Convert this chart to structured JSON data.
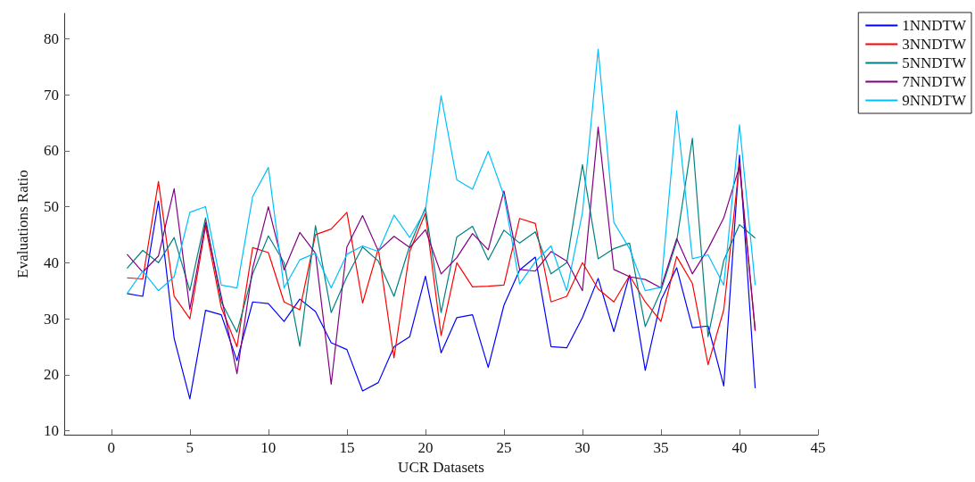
{
  "chart_data": {
    "type": "line",
    "xlabel": "UCR Datasets",
    "ylabel": "Evaluations Ratio",
    "x": [
      1,
      2,
      3,
      4,
      5,
      6,
      7,
      8,
      9,
      10,
      11,
      12,
      13,
      14,
      15,
      16,
      17,
      18,
      19,
      20,
      21,
      22,
      23,
      24,
      25,
      26,
      27,
      28,
      29,
      30,
      31,
      32,
      33,
      34,
      35,
      36,
      37,
      38,
      39,
      40,
      41
    ],
    "series": [
      {
        "name": "1NNDTW",
        "color": "#0000ff",
        "values": [
          34.5,
          34,
          51,
          26.5,
          15.7,
          31.5,
          30.7,
          22.5,
          33,
          32.7,
          29.5,
          33.5,
          31.3,
          25.7,
          24.5,
          17.1,
          18.6,
          25,
          26.8,
          37.6,
          23.9,
          30.2,
          30.7,
          21.3,
          32.4,
          38.7,
          41,
          25,
          24.8,
          30.2,
          37.2,
          27.7,
          37.8,
          20.8,
          33.3,
          39.1,
          28.4,
          28.7,
          18,
          59.2,
          17.6
        ]
      },
      {
        "name": "3NNDTW",
        "color": "#ff0000",
        "values": [
          37.3,
          37.1,
          54.5,
          34,
          30,
          46.5,
          32,
          25,
          42.7,
          41.8,
          33,
          31.6,
          45,
          46,
          49,
          32.8,
          42.5,
          23,
          42,
          48.8,
          27,
          40,
          35.7,
          35.8,
          36,
          47.9,
          47,
          33,
          34,
          40,
          35.3,
          33,
          37.7,
          33,
          29.5,
          41.1,
          36.3,
          21.8,
          31.6,
          57.8,
          27.8
        ]
      },
      {
        "name": "5NNDTW",
        "color": "#008080",
        "values": [
          39,
          42.2,
          40,
          44.5,
          35,
          48,
          33,
          27.6,
          38,
          44.8,
          40,
          25.1,
          46.6,
          31.1,
          37.5,
          42.8,
          40.3,
          34,
          43,
          49.8,
          31.1,
          44.6,
          46.5,
          40.5,
          45.8,
          43.5,
          45.5,
          38,
          40,
          57.5,
          40.7,
          42.5,
          43.5,
          28.6,
          35,
          43.8,
          62.2,
          26.8,
          40.4,
          46.8,
          44.4
        ]
      },
      {
        "name": "7NNDTW",
        "color": "#800080",
        "values": [
          41.5,
          38.3,
          41.2,
          53.2,
          31.7,
          47.2,
          34,
          20.2,
          39,
          50,
          38.7,
          45.4,
          41.7,
          18.3,
          42.8,
          48.4,
          42.1,
          44.7,
          42.7,
          45.9,
          38,
          40.9,
          45.2,
          42.3,
          52.8,
          38.8,
          38.5,
          42,
          40.3,
          35,
          64.2,
          38.8,
          37.5,
          37,
          35.5,
          44.3,
          38,
          42.5,
          48,
          57.2,
          28
        ]
      },
      {
        "name": "9NNDTW",
        "color": "#00bfff",
        "values": [
          34.5,
          38.5,
          35,
          37.5,
          49,
          50,
          36,
          35.5,
          51.8,
          57,
          35.5,
          40.5,
          41.7,
          35.5,
          41.5,
          43,
          42,
          48.5,
          44.5,
          49.4,
          69.8,
          54.8,
          53.1,
          59.9,
          52,
          36.2,
          40.2,
          43,
          35,
          48.9,
          78.1,
          47.2,
          42.5,
          35,
          35.6,
          67.1,
          40.7,
          41.4,
          36,
          64.6,
          36
        ]
      }
    ],
    "xlim": [
      -3,
      45
    ],
    "xticks": [
      0,
      5,
      10,
      15,
      20,
      25,
      30,
      35,
      40,
      45
    ],
    "ylim": [
      9.3,
      84.5
    ],
    "yticks": [
      10,
      20,
      30,
      40,
      50,
      60,
      70,
      80
    ],
    "grid": false,
    "legend": "top right",
    "marker": "none",
    "line_style": "solid"
  }
}
